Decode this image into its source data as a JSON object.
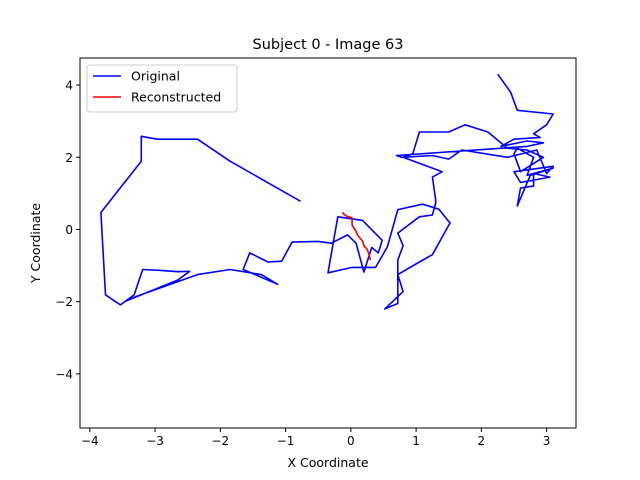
{
  "chart_data": {
    "type": "line",
    "title": "Subject 0 - Image 63",
    "xlabel": "X Coordinate",
    "ylabel": "Y Coordinate",
    "xlim": [
      -4.15,
      3.45
    ],
    "ylim": [
      -5.5,
      4.75
    ],
    "xticks": [
      -4,
      -3,
      -2,
      -1,
      0,
      1,
      2,
      3
    ],
    "yticks": [
      -4,
      -2,
      0,
      2,
      4
    ],
    "grid": false,
    "legend_position": "top-left",
    "series": [
      {
        "name": "Original",
        "color": "#0000ff",
        "points": [
          [
            -0.77,
            0.78
          ],
          [
            -1.85,
            1.89
          ],
          [
            -2.35,
            2.5
          ],
          [
            -2.97,
            2.5
          ],
          [
            -3.21,
            2.58
          ],
          [
            -3.21,
            1.89
          ],
          [
            -3.83,
            0.47
          ],
          [
            -3.76,
            -1.81
          ],
          [
            -3.53,
            -2.09
          ],
          [
            -3.32,
            -1.81
          ],
          [
            -3.19,
            -1.11
          ],
          [
            -2.94,
            -1.13
          ],
          [
            -2.65,
            -1.17
          ],
          [
            -2.47,
            -1.16
          ],
          [
            -2.65,
            -1.4
          ],
          [
            -3.44,
            -1.98
          ],
          [
            -3.28,
            -1.85
          ],
          [
            -2.35,
            -1.25
          ],
          [
            -1.85,
            -1.11
          ],
          [
            -1.37,
            -1.25
          ],
          [
            -1.12,
            -1.52
          ],
          [
            -1.65,
            -1.11
          ],
          [
            -1.55,
            -0.65
          ],
          [
            -1.27,
            -0.9
          ],
          [
            -1.06,
            -0.88
          ],
          [
            -0.9,
            -0.35
          ],
          [
            -0.5,
            -0.33
          ],
          [
            -0.3,
            -0.38
          ],
          [
            -0.05,
            -0.15
          ],
          [
            0.08,
            -0.38
          ],
          [
            0.2,
            -1.18
          ],
          [
            0.32,
            -0.5
          ],
          [
            0.42,
            -0.65
          ],
          [
            0.48,
            -0.3
          ],
          [
            0.18,
            0.25
          ],
          [
            -0.2,
            0.35
          ],
          [
            -0.35,
            -1.2
          ],
          [
            0.02,
            -1.05
          ],
          [
            0.38,
            -1.05
          ],
          [
            0.56,
            -0.48
          ],
          [
            0.72,
            0.55
          ],
          [
            1.1,
            0.7
          ],
          [
            1.35,
            0.56
          ],
          [
            1.52,
            0.18
          ],
          [
            1.25,
            -0.7
          ],
          [
            1.05,
            -0.9
          ],
          [
            0.72,
            -1.25
          ],
          [
            0.8,
            -1.72
          ],
          [
            0.52,
            -2.2
          ],
          [
            0.72,
            -2.05
          ],
          [
            0.72,
            -0.85
          ],
          [
            0.8,
            -0.45
          ],
          [
            0.72,
            -0.1
          ],
          [
            1.05,
            0.35
          ],
          [
            1.25,
            0.4
          ],
          [
            1.3,
            0.73
          ],
          [
            1.3,
            0.82
          ],
          [
            1.25,
            1.45
          ],
          [
            1.4,
            1.6
          ],
          [
            0.8,
            2.0
          ],
          [
            0.95,
            2.1
          ],
          [
            1.05,
            2.7
          ],
          [
            1.45,
            2.7
          ],
          [
            1.5,
            2.7
          ],
          [
            1.75,
            2.9
          ],
          [
            2.1,
            2.7
          ],
          [
            2.4,
            2.25
          ],
          [
            2.7,
            2.2
          ],
          [
            2.95,
            2.0
          ],
          [
            2.6,
            1.6
          ],
          [
            2.5,
            2.1
          ],
          [
            2.55,
            2.25
          ],
          [
            2.8,
            2.0
          ],
          [
            2.7,
            1.5
          ],
          [
            3.1,
            1.7
          ],
          [
            2.75,
            1.5
          ],
          [
            2.55,
            0.65
          ],
          [
            2.6,
            1.15
          ],
          [
            2.8,
            1.2
          ],
          [
            2.8,
            1.55
          ],
          [
            3.05,
            1.45
          ],
          [
            2.6,
            1.3
          ],
          [
            2.5,
            1.6
          ],
          [
            3.1,
            1.75
          ],
          [
            3.0,
            1.55
          ],
          [
            2.85,
            2.2
          ],
          [
            2.4,
            2.0
          ],
          [
            1.7,
            2.2
          ],
          [
            1.5,
            1.95
          ],
          [
            1.25,
            2.05
          ],
          [
            0.78,
            2.0
          ],
          [
            0.7,
            2.05
          ],
          [
            2.7,
            2.3
          ],
          [
            2.95,
            2.4
          ],
          [
            2.7,
            2.45
          ],
          [
            2.3,
            2.3
          ],
          [
            2.5,
            2.5
          ],
          [
            2.9,
            2.55
          ],
          [
            2.8,
            2.65
          ],
          [
            3.0,
            2.9
          ],
          [
            3.1,
            3.2
          ],
          [
            2.55,
            3.3
          ],
          [
            2.45,
            3.8
          ],
          [
            2.25,
            4.3
          ]
        ]
      },
      {
        "name": "Reconstructed",
        "color": "#ff0000",
        "points": [
          [
            -0.13,
            0.47
          ],
          [
            -0.08,
            0.38
          ],
          [
            0.02,
            0.32
          ],
          [
            0.02,
            0.12
          ],
          [
            0.08,
            -0.05
          ],
          [
            0.1,
            -0.15
          ],
          [
            0.18,
            -0.32
          ],
          [
            0.2,
            -0.45
          ],
          [
            0.25,
            -0.55
          ],
          [
            0.28,
            -0.7
          ],
          [
            0.3,
            -0.85
          ]
        ]
      }
    ]
  }
}
